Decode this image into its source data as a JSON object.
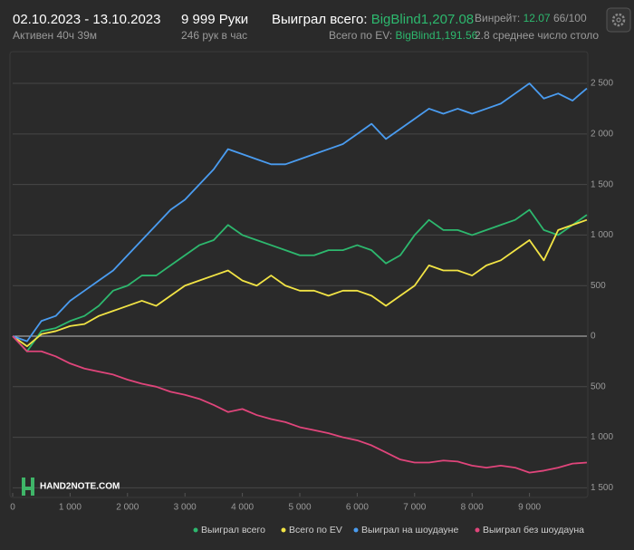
{
  "header": {
    "period": "02.10.2023 - 13.10.2023",
    "active": "Активен 40ч 39м",
    "hands": "9 999 Руки",
    "hands_per_hour": "246 рук в час",
    "won_label": "Выиграл всего:",
    "won_value": "BigBlind1,207.08",
    "ev_label": "Всего по EV:",
    "ev_value": "BigBlind1,191.56",
    "winrate_label": "Винрейт:",
    "winrate_value": "12.07",
    "winrate_rate": "66/100",
    "tables": "2.8 среднее число столо"
  },
  "logo": "HAND2NOTE.COM",
  "chart_data": {
    "type": "line",
    "x": [
      0,
      250,
      500,
      750,
      1000,
      1250,
      1500,
      1750,
      2000,
      2250,
      2500,
      2750,
      3000,
      3250,
      3500,
      3750,
      4000,
      4250,
      4500,
      4750,
      5000,
      5250,
      5500,
      5750,
      6000,
      6250,
      6500,
      6750,
      7000,
      7250,
      7500,
      7750,
      8000,
      8250,
      8500,
      8750,
      9000,
      9250,
      9500,
      9750,
      9999
    ],
    "xlim": [
      0,
      10000
    ],
    "xticks": [
      0,
      {
        "value": 1000,
        "label": "1 000"
      },
      {
        "value": 2000,
        "label": "2 000"
      },
      {
        "value": 3000,
        "label": "3 000"
      },
      {
        "value": 4000,
        "label": "4 000"
      },
      {
        "value": 5000,
        "label": "5 000"
      },
      {
        "value": 6000,
        "label": "6 000"
      },
      {
        "value": 7000,
        "label": "7 000"
      },
      {
        "value": 8000,
        "label": "8 000"
      },
      {
        "value": 9000,
        "label": "9 000"
      }
    ],
    "ylim": [
      -1586,
      2805
    ],
    "yticks": [
      {
        "value": 2500,
        "label": "2 500"
      },
      {
        "value": 2000,
        "label": "2 000"
      },
      {
        "value": 1500,
        "label": "1 500"
      },
      {
        "value": 1000,
        "label": "1 000"
      },
      500,
      0,
      {
        "value": -500,
        "label": "500"
      },
      {
        "value": -1000,
        "label": "1 000"
      },
      {
        "value": -1500,
        "label": "1 500"
      }
    ],
    "grid": true,
    "legend": "bottom",
    "series": [
      {
        "name": "Выиграл всего",
        "color": "#2db86e",
        "values": [
          0,
          -150,
          50,
          80,
          150,
          200,
          300,
          450,
          500,
          600,
          600,
          700,
          800,
          900,
          950,
          1100,
          1000,
          950,
          900,
          850,
          800,
          800,
          850,
          850,
          900,
          850,
          720,
          800,
          1000,
          1150,
          1050,
          1050,
          1000,
          1050,
          1100,
          1150,
          1250,
          1050,
          1000,
          1100,
          1200
        ]
      },
      {
        "name": "Всего по EV",
        "color": "#f2e445",
        "values": [
          0,
          -100,
          20,
          50,
          100,
          120,
          200,
          250,
          300,
          350,
          300,
          400,
          500,
          550,
          600,
          650,
          550,
          500,
          600,
          500,
          450,
          450,
          400,
          450,
          450,
          400,
          300,
          400,
          500,
          700,
          650,
          650,
          600,
          700,
          750,
          850,
          950,
          750,
          1050,
          1100,
          1150
        ]
      },
      {
        "name": "Выиграл на шоудауне",
        "color": "#4a9cf0",
        "values": [
          0,
          -50,
          150,
          200,
          350,
          450,
          550,
          650,
          800,
          950,
          1100,
          1250,
          1350,
          1500,
          1650,
          1850,
          1800,
          1750,
          1700,
          1700,
          1750,
          1800,
          1850,
          1900,
          2000,
          2100,
          1950,
          2050,
          2150,
          2250,
          2200,
          2250,
          2200,
          2250,
          2300,
          2400,
          2500,
          2350,
          2400,
          2330,
          2450
        ]
      },
      {
        "name": "Выиграл без шоудауна",
        "color": "#e0457b",
        "values": [
          0,
          -150,
          -150,
          -200,
          -270,
          -320,
          -350,
          -380,
          -430,
          -470,
          -500,
          -550,
          -580,
          -620,
          -680,
          -750,
          -720,
          -780,
          -820,
          -850,
          -900,
          -930,
          -960,
          -1000,
          -1030,
          -1080,
          -1150,
          -1220,
          -1250,
          -1250,
          -1230,
          -1240,
          -1280,
          -1300,
          -1280,
          -1300,
          -1350,
          -1330,
          -1300,
          -1260,
          -1250
        ]
      }
    ]
  }
}
